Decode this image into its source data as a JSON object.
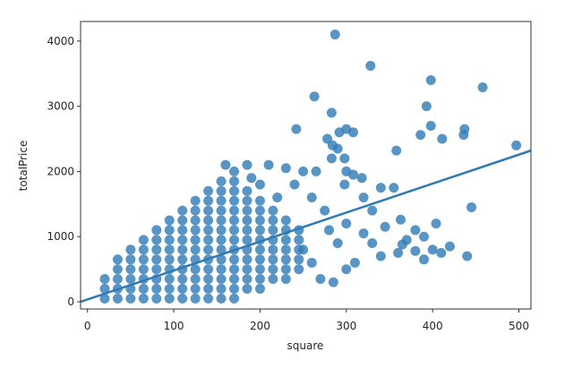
{
  "chart_data": {
    "type": "scatter",
    "x_label": "square",
    "y_label": "totalPrice",
    "xlim": [
      -8,
      514
    ],
    "ylim": [
      -110,
      4300
    ],
    "xticks": [
      0,
      100,
      200,
      300,
      400,
      500
    ],
    "yticks": [
      0,
      1000,
      2000,
      3000,
      4000
    ],
    "series": [
      {
        "color": "#2f7ab5",
        "x": [
          20,
          20,
          20,
          35,
          35,
          35,
          35,
          35,
          50,
          50,
          50,
          50,
          50,
          50,
          65,
          65,
          65,
          65,
          65,
          65,
          65,
          80,
          80,
          80,
          80,
          80,
          80,
          80,
          80,
          95,
          95,
          95,
          95,
          95,
          95,
          95,
          95,
          95,
          110,
          110,
          110,
          110,
          110,
          110,
          110,
          110,
          110,
          110,
          125,
          125,
          125,
          125,
          125,
          125,
          125,
          125,
          125,
          125,
          125,
          140,
          140,
          140,
          140,
          140,
          140,
          140,
          140,
          140,
          140,
          140,
          140,
          155,
          155,
          155,
          155,
          155,
          155,
          155,
          155,
          155,
          155,
          155,
          155,
          155,
          170,
          170,
          170,
          170,
          170,
          170,
          170,
          170,
          170,
          170,
          170,
          170,
          170,
          185,
          185,
          185,
          185,
          185,
          185,
          185,
          185,
          185,
          185,
          185,
          200,
          200,
          200,
          200,
          200,
          200,
          200,
          200,
          200,
          200,
          215,
          215,
          215,
          215,
          215,
          215,
          215,
          215,
          230,
          230,
          230,
          230,
          230,
          230,
          230,
          245,
          245,
          245,
          245,
          245,
          287,
          328,
          398,
          458,
          263,
          393,
          437,
          436,
          398,
          411,
          386,
          497,
          242,
          283,
          300,
          292,
          308,
          278,
          284,
          290,
          358,
          283,
          298,
          300,
          318,
          340,
          355,
          298,
          308,
          265,
          250,
          230,
          210,
          185,
          160,
          170,
          445,
          404,
          363,
          345,
          380,
          400,
          410,
          440,
          420,
          380,
          360,
          340,
          330,
          320,
          300,
          280,
          290,
          310,
          285,
          270,
          260,
          250,
          330,
          320,
          370,
          390,
          390,
          365,
          300,
          275,
          260,
          240,
          220,
          200,
          190
        ],
        "values": [
          50,
          200,
          350,
          50,
          200,
          350,
          500,
          650,
          50,
          200,
          350,
          500,
          650,
          800,
          50,
          200,
          350,
          500,
          650,
          800,
          950,
          50,
          200,
          350,
          500,
          650,
          800,
          950,
          1100,
          50,
          200,
          350,
          500,
          650,
          800,
          950,
          1100,
          1250,
          50,
          200,
          350,
          500,
          650,
          800,
          950,
          1100,
          1250,
          1400,
          50,
          200,
          350,
          500,
          650,
          800,
          950,
          1100,
          1250,
          1400,
          1550,
          50,
          200,
          350,
          500,
          650,
          800,
          950,
          1100,
          1250,
          1400,
          1550,
          1700,
          50,
          200,
          350,
          500,
          650,
          800,
          950,
          1100,
          1250,
          1400,
          1550,
          1700,
          1850,
          50,
          200,
          350,
          500,
          650,
          800,
          950,
          1100,
          1250,
          1400,
          1550,
          1700,
          1850,
          200,
          350,
          500,
          650,
          800,
          950,
          1100,
          1250,
          1400,
          1550,
          1700,
          200,
          350,
          500,
          650,
          800,
          950,
          1100,
          1250,
          1400,
          1550,
          350,
          500,
          650,
          800,
          950,
          1100,
          1250,
          1400,
          350,
          500,
          650,
          800,
          950,
          1100,
          1250,
          500,
          650,
          800,
          950,
          1100,
          4100,
          3620,
          3400,
          3290,
          3150,
          3000,
          2650,
          2560,
          2700,
          2500,
          2560,
          2400,
          2650,
          2900,
          2650,
          2600,
          2600,
          2500,
          2400,
          2350,
          2320,
          2200,
          2200,
          2000,
          1900,
          1750,
          1750,
          1800,
          1950,
          2000,
          2000,
          2050,
          2100,
          2100,
          2100,
          2000,
          1450,
          1200,
          1260,
          1150,
          1100,
          800,
          750,
          700,
          850,
          780,
          750,
          700,
          900,
          1050,
          1200,
          1100,
          900,
          600,
          300,
          350,
          600,
          800,
          1400,
          1600,
          950,
          1000,
          650,
          880,
          500,
          1400,
          1600,
          1800,
          1600,
          1800,
          1900
        ]
      }
    ],
    "fit_line": {
      "color": "#2f7ab5",
      "x": [
        -8,
        514
      ],
      "y": [
        0,
        2320
      ]
    }
  }
}
